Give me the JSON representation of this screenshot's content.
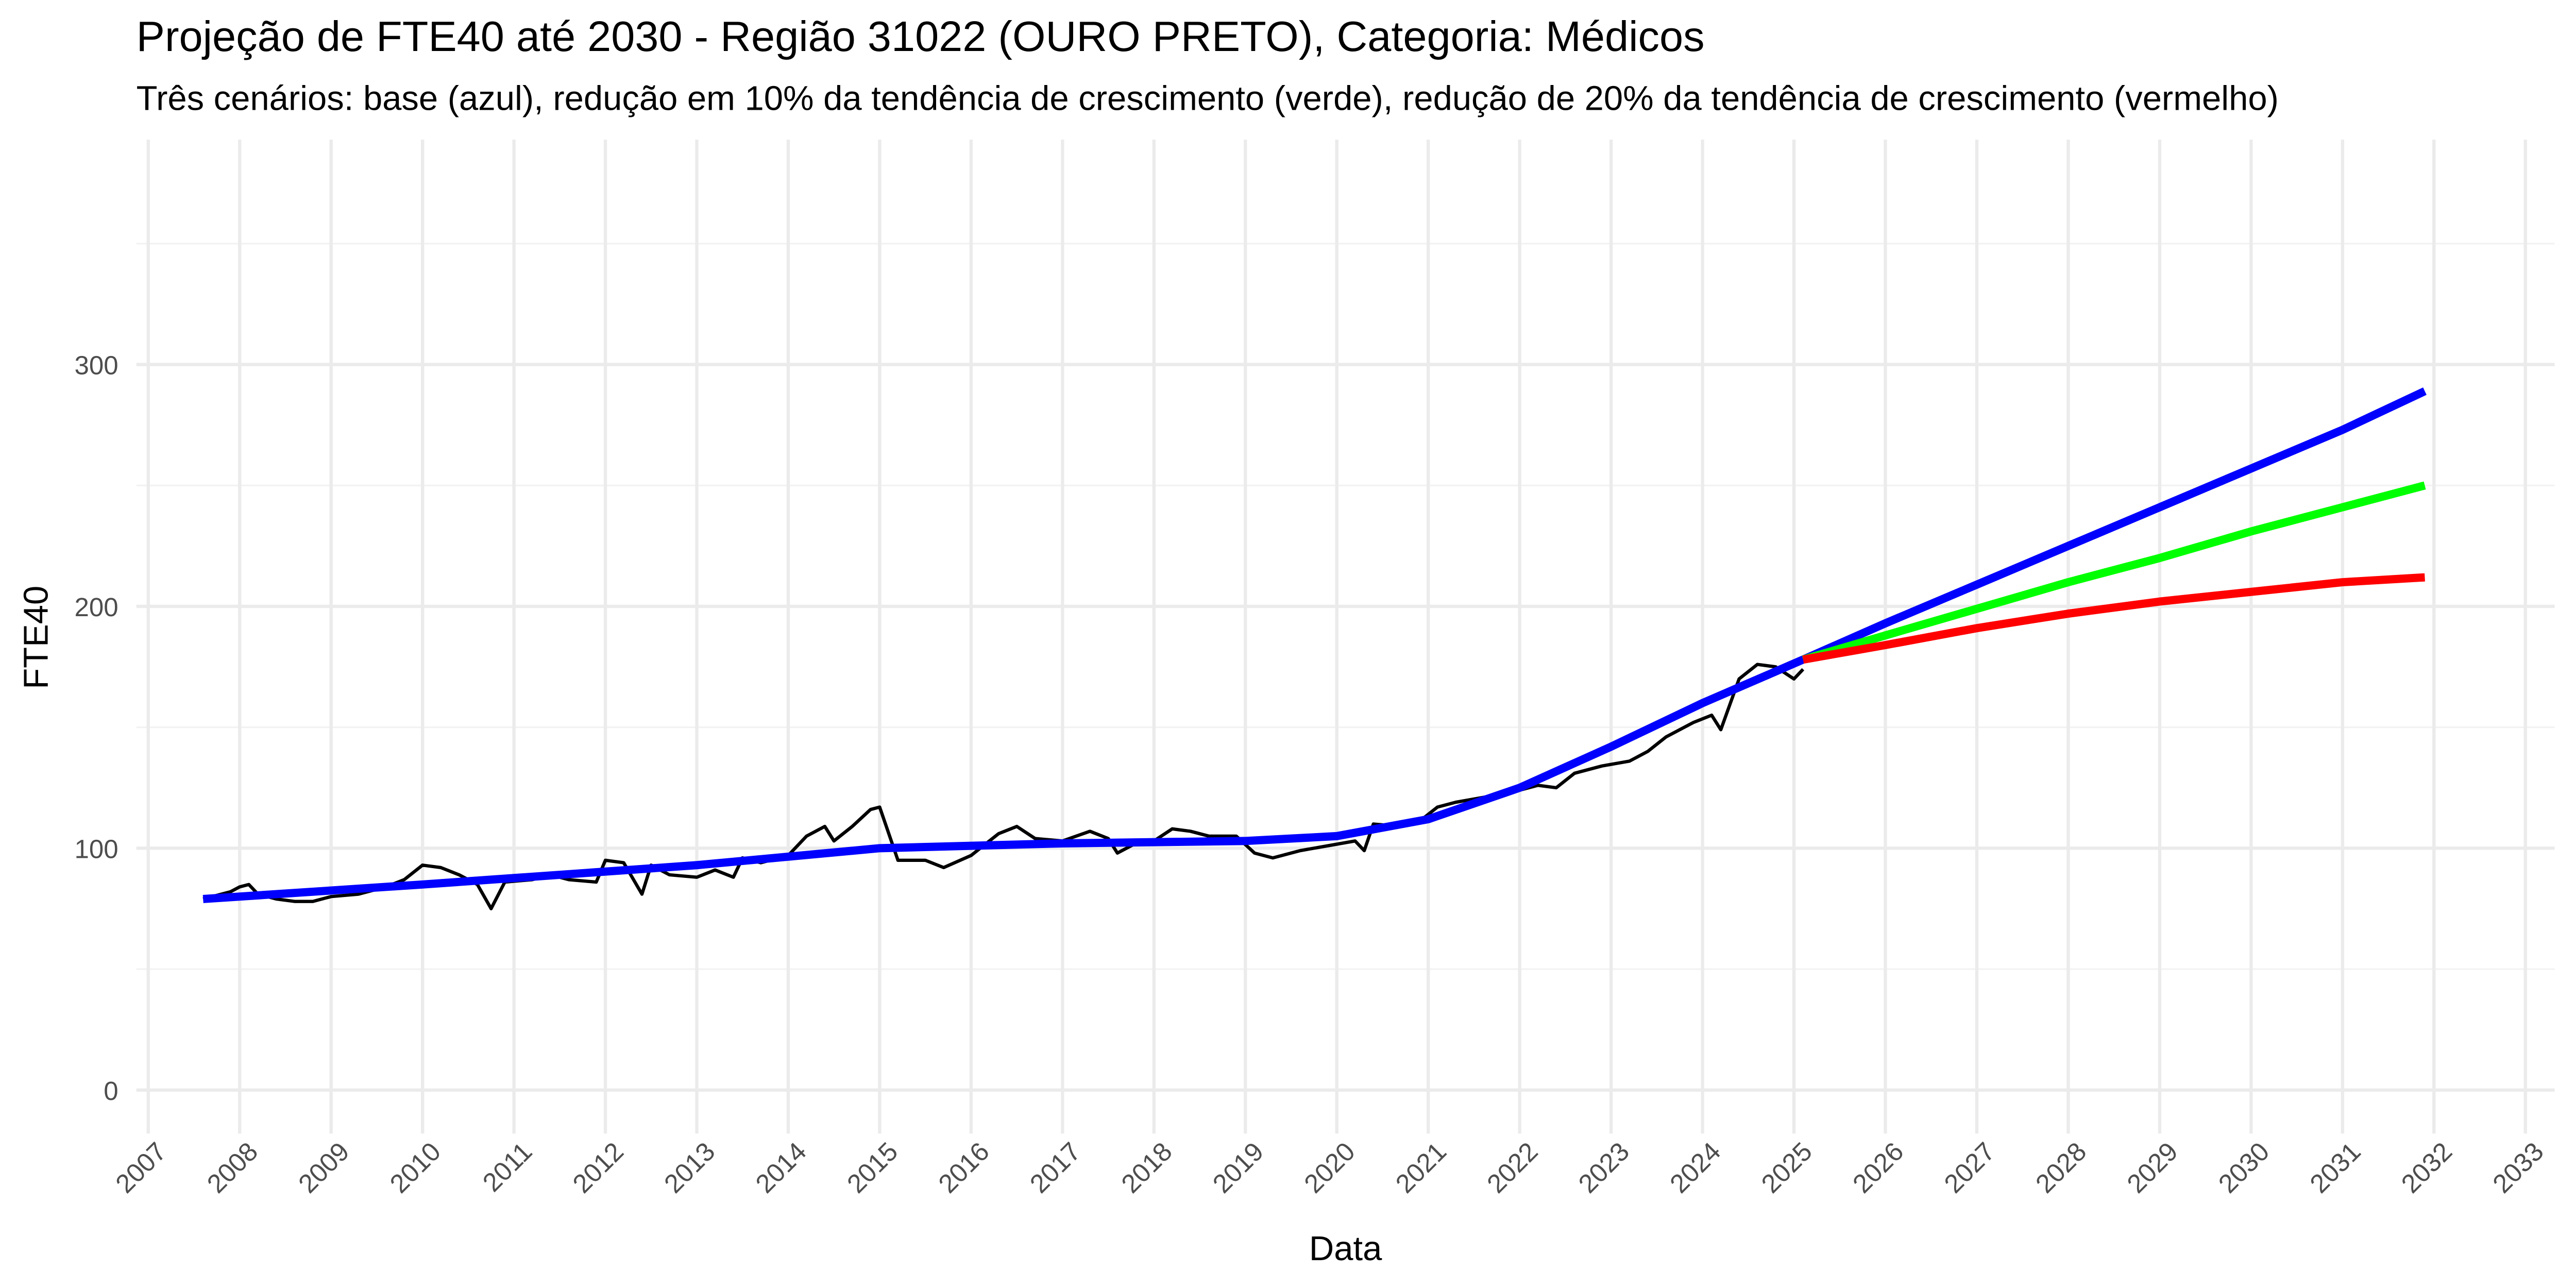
{
  "chart_data": {
    "type": "line",
    "title": "Projeção de FTE40 até 2030 - Região 31022 (OURO PRETO), Categoria: Médicos",
    "subtitle": "Três cenários: base (azul), redução em 10% da tendência de crescimento (verde), redução de 20% da tendência de crescimento (vermelho)",
    "xlabel": "Data",
    "ylabel": "FTE40",
    "xlim": [
      2006.87,
      2033.32
    ],
    "ylim": [
      -18,
      393
    ],
    "xticks": [
      2007,
      2008,
      2009,
      2010,
      2011,
      2012,
      2013,
      2014,
      2015,
      2016,
      2017,
      2018,
      2019,
      2020,
      2021,
      2022,
      2023,
      2024,
      2025,
      2026,
      2027,
      2028,
      2029,
      2030,
      2031,
      2032,
      2033
    ],
    "yticks": [
      0,
      100,
      200,
      300
    ],
    "minor_yticks": [
      50,
      150,
      250,
      350
    ],
    "grid": true,
    "series": [
      {
        "color": "#000000",
        "x": [
          2007.6,
          2007.9,
          2008.0,
          2008.1,
          2008.2,
          2008.4,
          2008.6,
          2008.8,
          2009.0,
          2009.3,
          2009.6,
          2009.8,
          2010.0,
          2010.2,
          2010.4,
          2010.6,
          2010.75,
          2010.9,
          2011.2,
          2011.4,
          2011.6,
          2011.9,
          2012.0,
          2012.2,
          2012.4,
          2012.5,
          2012.7,
          2013.0,
          2013.2,
          2013.4,
          2013.5,
          2013.7,
          2014.0,
          2014.2,
          2014.4,
          2014.5,
          2014.7,
          2014.9,
          2015.0,
          2015.2,
          2015.5,
          2015.7,
          2016.0,
          2016.3,
          2016.5,
          2016.7,
          2017.0,
          2017.3,
          2017.5,
          2017.6,
          2017.8,
          2018.0,
          2018.2,
          2018.4,
          2018.6,
          2018.9,
          2019.1,
          2019.3,
          2019.6,
          2019.9,
          2020.2,
          2020.3,
          2020.4,
          2020.7,
          2020.9,
          2021.1,
          2021.3,
          2021.6,
          2021.9,
          2022.2,
          2022.4,
          2022.6,
          2022.9,
          2023.2,
          2023.4,
          2023.6,
          2023.9,
          2024.1,
          2024.2,
          2024.4,
          2024.6,
          2024.8,
          2025.0,
          2025.1
        ],
        "values": [
          79,
          82,
          84,
          85,
          81,
          79,
          78,
          78,
          80,
          81,
          84,
          87,
          93,
          92,
          89,
          85,
          75,
          86,
          87,
          89,
          87,
          86,
          95,
          94,
          81,
          93,
          89,
          88,
          91,
          88,
          96,
          94,
          97,
          105,
          109,
          103,
          109,
          116,
          117,
          95,
          95,
          92,
          97,
          106,
          109,
          104,
          103,
          107,
          104,
          98,
          102,
          103,
          108,
          107,
          105,
          105,
          98,
          96,
          99,
          101,
          103,
          99,
          110,
          109,
          111,
          117,
          119,
          121,
          123,
          126,
          125,
          131,
          134,
          136,
          140,
          146,
          152,
          155,
          149,
          170,
          176,
          175,
          170,
          174
        ]
      },
      {
        "color": "#0000ff",
        "x": [
          2007.6,
          2010,
          2013,
          2015,
          2017,
          2019,
          2020,
          2021,
          2022,
          2023,
          2024,
          2025.1,
          2026,
          2027,
          2028,
          2029,
          2030,
          2031,
          2031.9
        ],
        "values": [
          79,
          85,
          93,
          100,
          102,
          103,
          105,
          112,
          125,
          142,
          160,
          178,
          193,
          209,
          225,
          241,
          257,
          273,
          289
        ]
      },
      {
        "color": "#00ff00",
        "x": [
          2025.1,
          2026,
          2027,
          2028,
          2029,
          2030,
          2031,
          2031.9
        ],
        "values": [
          178,
          188,
          199,
          210,
          220,
          231,
          241,
          250
        ]
      },
      {
        "color": "#ff0000",
        "x": [
          2025.1,
          2026,
          2027,
          2028,
          2029,
          2030,
          2031,
          2031.9
        ],
        "values": [
          178,
          184,
          191,
          197,
          202,
          206,
          210,
          212
        ]
      }
    ]
  }
}
